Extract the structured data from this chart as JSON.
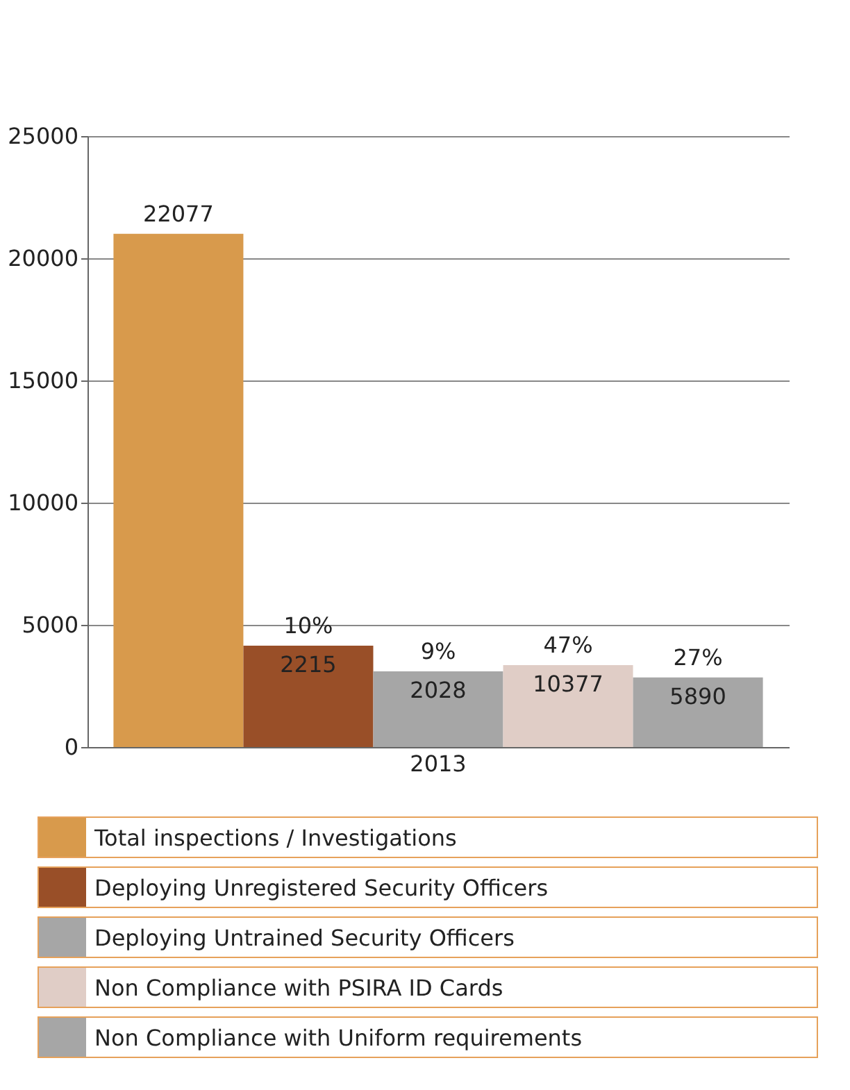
{
  "chart_data": {
    "type": "bar",
    "categories": [
      "2013"
    ],
    "series": [
      {
        "name": "Total inspections / Investigations",
        "color": "#d89a4c",
        "values": [
          21000
        ]
      },
      {
        "name": "Deploying Unregistered Security Officers",
        "color": "#994f28",
        "values": [
          4150
        ]
      },
      {
        "name": "Deploying Untrained Security Officers",
        "color": "#a6a6a6",
        "values": [
          3100
        ]
      },
      {
        "name": "Non Compliance with PSIRA ID Cards",
        "color": "#e0cdc6",
        "values": [
          3350
        ]
      },
      {
        "name": "Non Compliance with Uniform requirements",
        "color": "#a6a6a6",
        "values": [
          2850
        ]
      }
    ],
    "annotations": [
      "22077",
      "10%\n2215",
      "9%\n2028",
      "47%\n10377",
      "27%\n5890"
    ],
    "ylim": [
      0,
      25000
    ],
    "yticks": [
      0,
      5000,
      10000,
      15000,
      20000,
      25000
    ],
    "grid": "y",
    "legend": "bottom"
  }
}
